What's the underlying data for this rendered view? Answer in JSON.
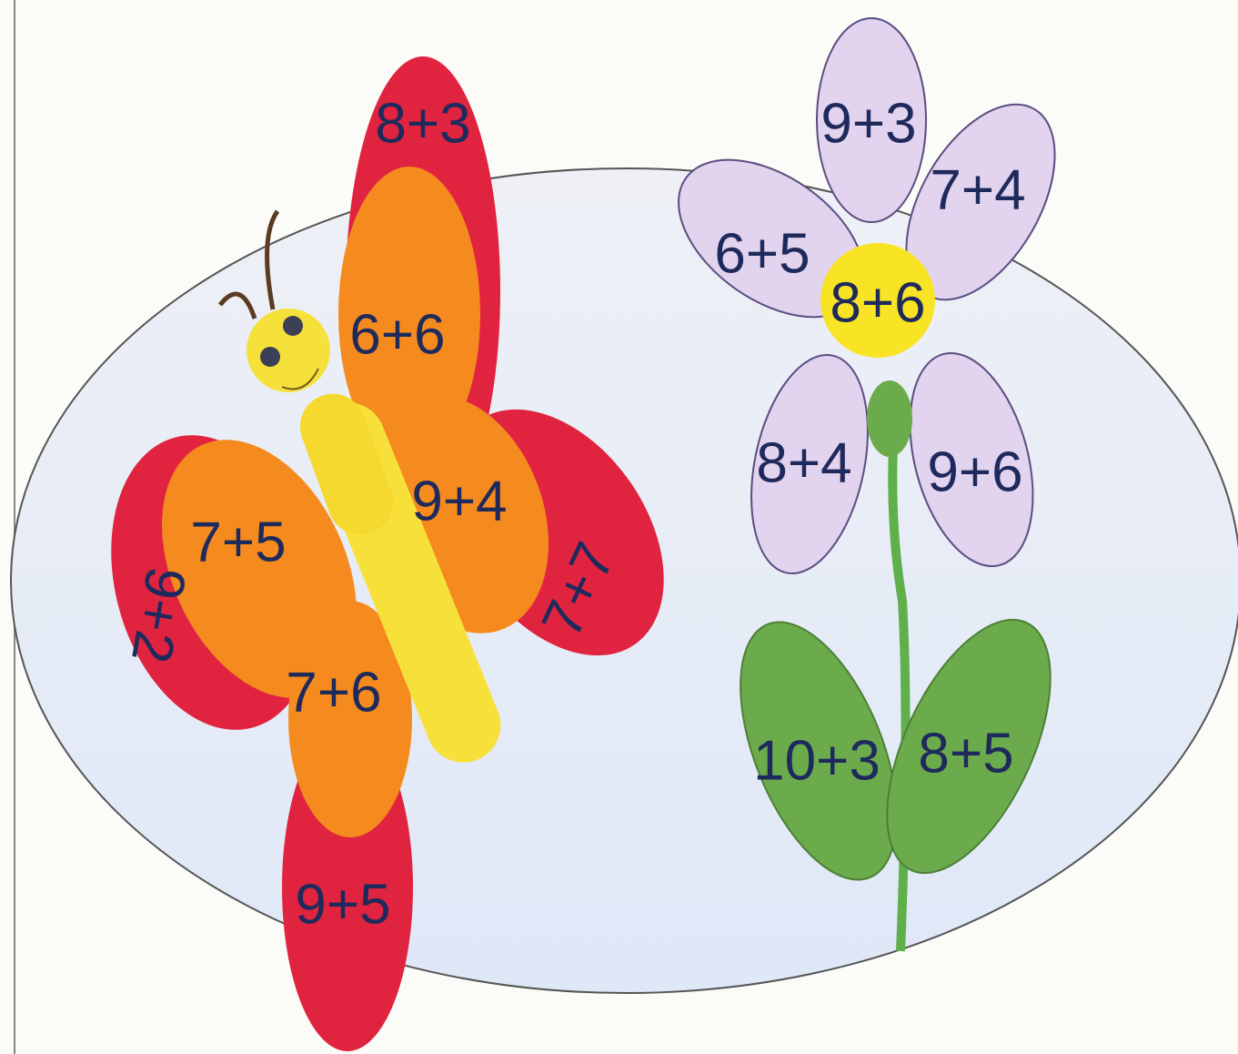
{
  "butterfly": {
    "wings": [
      "8+3",
      "6+6",
      "9+4",
      "7+7",
      "7+5",
      "9+2",
      "7+6",
      "9+5"
    ]
  },
  "flower": {
    "petals": [
      "9+3",
      "7+4",
      "6+5",
      "8+4",
      "9+6"
    ],
    "center": "8+6",
    "leaves": [
      "10+3",
      "8+5"
    ]
  }
}
